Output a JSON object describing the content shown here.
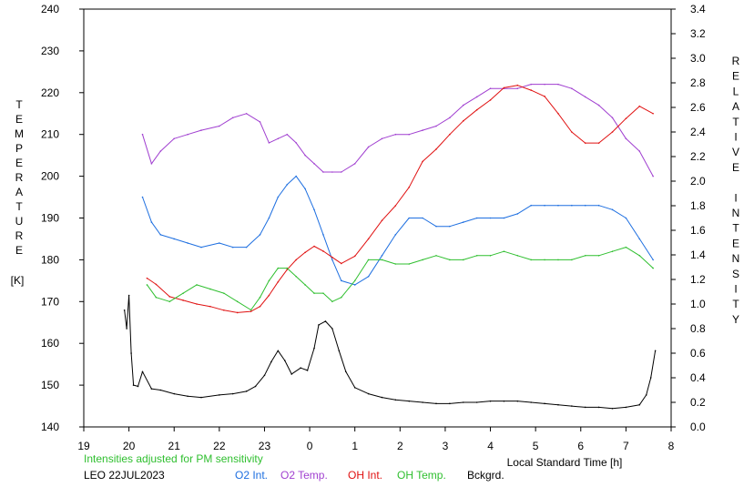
{
  "chart_data": {
    "type": "line",
    "left_axis": {
      "title": "TEMPERATURE",
      "unit": "[K]",
      "range": [
        140,
        240
      ],
      "ticks": [
        "140",
        "150",
        "160",
        "170",
        "180",
        "190",
        "200",
        "210",
        "220",
        "230",
        "240"
      ]
    },
    "right_axis": {
      "title": "RELATIVE INTENSITY",
      "range": [
        0.0,
        3.4
      ],
      "ticks": [
        "0.0",
        "0.2",
        "0.4",
        "0.6",
        "0.8",
        "1.0",
        "1.2",
        "1.4",
        "1.6",
        "1.8",
        "2.0",
        "2.2",
        "2.4",
        "2.6",
        "2.8",
        "3.0",
        "3.2",
        "3.4"
      ]
    },
    "x_axis": {
      "label": "Local Standard Time [h]",
      "range": [
        19,
        32
      ],
      "ticks": [
        "19",
        "20",
        "21",
        "22",
        "23",
        "0",
        "1",
        "2",
        "3",
        "4",
        "5",
        "6",
        "7",
        "8"
      ]
    },
    "note": "Intensities adjusted for PM sensitivity",
    "station": "LEO 22JUL2023",
    "grid": false,
    "series": [
      {
        "name": "O2 Int.",
        "axis": "left",
        "color": "#1e6fe0",
        "x": [
          20.3,
          20.5,
          20.7,
          21.0,
          21.3,
          21.6,
          22.0,
          22.3,
          22.6,
          22.9,
          23.1,
          23.3,
          23.5,
          23.7,
          23.9,
          24.1,
          24.3,
          24.5,
          24.7,
          25.0,
          25.3,
          25.6,
          25.9,
          26.2,
          26.5,
          26.8,
          27.1,
          27.4,
          27.7,
          28.0,
          28.3,
          28.6,
          28.9,
          29.2,
          29.5,
          29.8,
          30.1,
          30.4,
          30.7,
          31.0,
          31.3,
          31.6
        ],
        "y": [
          195,
          189,
          186,
          185,
          184,
          183,
          184,
          183,
          183,
          186,
          190,
          195,
          198,
          200,
          197,
          192,
          186,
          180,
          175,
          174,
          176,
          181,
          186,
          190,
          190,
          188,
          188,
          189,
          190,
          190,
          190,
          191,
          193,
          193,
          193,
          193,
          193,
          193,
          192,
          190,
          185,
          180
        ]
      },
      {
        "name": "O2 Temp.",
        "axis": "left",
        "color": "#a03fd0",
        "x": [
          20.3,
          20.5,
          20.7,
          21.0,
          21.3,
          21.6,
          22.0,
          22.3,
          22.6,
          22.9,
          23.1,
          23.3,
          23.5,
          23.7,
          23.9,
          24.1,
          24.3,
          24.5,
          24.7,
          25.0,
          25.3,
          25.6,
          25.9,
          26.2,
          26.5,
          26.8,
          27.1,
          27.4,
          27.7,
          28.0,
          28.3,
          28.6,
          28.9,
          29.2,
          29.5,
          29.8,
          30.1,
          30.4,
          30.7,
          31.0,
          31.3,
          31.6
        ],
        "y": [
          210,
          203,
          206,
          209,
          210,
          211,
          212,
          214,
          215,
          213,
          208,
          209,
          210,
          208,
          205,
          203,
          201,
          201,
          201,
          203,
          207,
          209,
          210,
          210,
          211,
          212,
          214,
          217,
          219,
          221,
          221,
          221,
          222,
          222,
          222,
          221,
          219,
          217,
          214,
          209,
          206,
          200
        ]
      },
      {
        "name": "OH Int.",
        "axis": "right",
        "color": "#e01010",
        "x": [
          20.4,
          20.6,
          20.9,
          21.2,
          21.5,
          21.8,
          22.1,
          22.4,
          22.7,
          22.9,
          23.1,
          23.3,
          23.5,
          23.7,
          23.9,
          24.1,
          24.3,
          24.5,
          24.7,
          25.0,
          25.3,
          25.6,
          25.9,
          26.2,
          26.5,
          26.8,
          27.1,
          27.4,
          27.7,
          28.0,
          28.3,
          28.6,
          28.9,
          29.2,
          29.5,
          29.8,
          30.1,
          30.4,
          30.7,
          31.0,
          31.3,
          31.6
        ],
        "y": [
          1.21,
          1.16,
          1.06,
          1.03,
          1.0,
          0.98,
          0.95,
          0.93,
          0.94,
          0.98,
          1.07,
          1.18,
          1.28,
          1.36,
          1.42,
          1.47,
          1.43,
          1.38,
          1.33,
          1.39,
          1.53,
          1.68,
          1.8,
          1.95,
          2.16,
          2.26,
          2.38,
          2.49,
          2.58,
          2.66,
          2.76,
          2.78,
          2.74,
          2.69,
          2.55,
          2.4,
          2.31,
          2.31,
          2.4,
          2.51,
          2.61,
          2.55
        ]
      },
      {
        "name": "OH Temp.",
        "axis": "left",
        "color": "#2fbf2f",
        "x": [
          20.4,
          20.6,
          20.9,
          21.2,
          21.5,
          21.8,
          22.1,
          22.4,
          22.7,
          22.9,
          23.1,
          23.3,
          23.5,
          23.7,
          23.9,
          24.1,
          24.3,
          24.5,
          24.7,
          25.0,
          25.3,
          25.6,
          25.9,
          26.2,
          26.5,
          26.8,
          27.1,
          27.4,
          27.7,
          28.0,
          28.3,
          28.6,
          28.9,
          29.2,
          29.5,
          29.8,
          30.1,
          30.4,
          30.7,
          31.0,
          31.3,
          31.6
        ],
        "y": [
          174,
          171,
          170,
          172,
          174,
          173,
          172,
          170,
          168,
          171,
          175,
          178,
          178,
          176,
          174,
          172,
          172,
          170,
          171,
          175,
          180,
          180,
          179,
          179,
          180,
          181,
          180,
          180,
          181,
          181,
          182,
          181,
          180,
          180,
          180,
          180,
          181,
          181,
          182,
          183,
          181,
          178
        ]
      },
      {
        "name": "Bckgrd.",
        "axis": "right",
        "color": "#000000",
        "x": [
          19.9,
          19.95,
          20.0,
          20.05,
          20.1,
          20.2,
          20.3,
          20.5,
          20.7,
          21.0,
          21.3,
          21.6,
          22.0,
          22.3,
          22.6,
          22.8,
          23.0,
          23.15,
          23.3,
          23.45,
          23.6,
          23.8,
          23.95,
          24.1,
          24.2,
          24.35,
          24.5,
          24.65,
          24.8,
          25.0,
          25.3,
          25.6,
          25.9,
          26.2,
          26.5,
          26.8,
          27.1,
          27.4,
          27.7,
          28.0,
          28.3,
          28.6,
          28.9,
          29.2,
          29.5,
          29.8,
          30.1,
          30.4,
          30.7,
          31.0,
          31.3,
          31.45,
          31.55,
          31.65
        ],
        "y": [
          0.95,
          0.8,
          1.07,
          0.6,
          0.34,
          0.33,
          0.45,
          0.31,
          0.3,
          0.27,
          0.25,
          0.24,
          0.26,
          0.27,
          0.29,
          0.33,
          0.42,
          0.53,
          0.62,
          0.54,
          0.43,
          0.48,
          0.46,
          0.64,
          0.83,
          0.86,
          0.8,
          0.62,
          0.45,
          0.32,
          0.27,
          0.24,
          0.22,
          0.21,
          0.2,
          0.19,
          0.19,
          0.2,
          0.2,
          0.21,
          0.21,
          0.21,
          0.2,
          0.19,
          0.18,
          0.17,
          0.16,
          0.16,
          0.15,
          0.16,
          0.18,
          0.26,
          0.4,
          0.62
        ]
      }
    ]
  }
}
